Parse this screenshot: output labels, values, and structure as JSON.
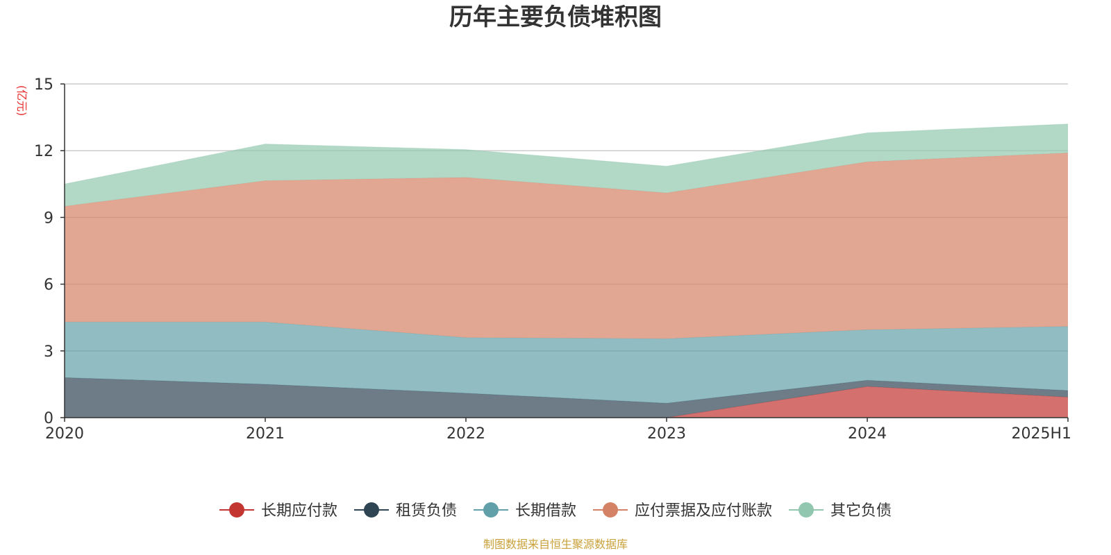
{
  "chart_data": {
    "type": "area",
    "stacked": true,
    "title": "历年主要负债堆积图",
    "unit": "(亿元)",
    "source": "制图数据来自恒生聚源数据库",
    "categories": [
      "2020",
      "2021",
      "2022",
      "2023",
      "2024",
      "2025H1"
    ],
    "ylim": [
      0,
      15
    ],
    "yticks": [
      "0",
      "3",
      "6",
      "9",
      "12",
      "15"
    ],
    "grid": true,
    "legend_position": "bottom",
    "series": [
      {
        "name": "长期应付款",
        "color": "#c23531",
        "values": [
          0,
          0,
          0,
          0,
          1.4,
          0.92
        ]
      },
      {
        "name": "租赁负债",
        "color": "#2f4554",
        "values": [
          1.8,
          1.5,
          1.1,
          0.65,
          0.28,
          0.3
        ]
      },
      {
        "name": "长期借款",
        "color": "#61a0a8",
        "values": [
          2.5,
          2.8,
          2.5,
          2.9,
          2.27,
          2.88
        ]
      },
      {
        "name": "应付票据及应付账款",
        "color": "#d48265",
        "values": [
          5.2,
          6.35,
          7.2,
          6.55,
          7.55,
          7.8
        ]
      },
      {
        "name": "其它负债",
        "color": "#91c7ae",
        "values": [
          1.0,
          1.65,
          1.25,
          1.2,
          1.3,
          1.3
        ]
      }
    ]
  }
}
